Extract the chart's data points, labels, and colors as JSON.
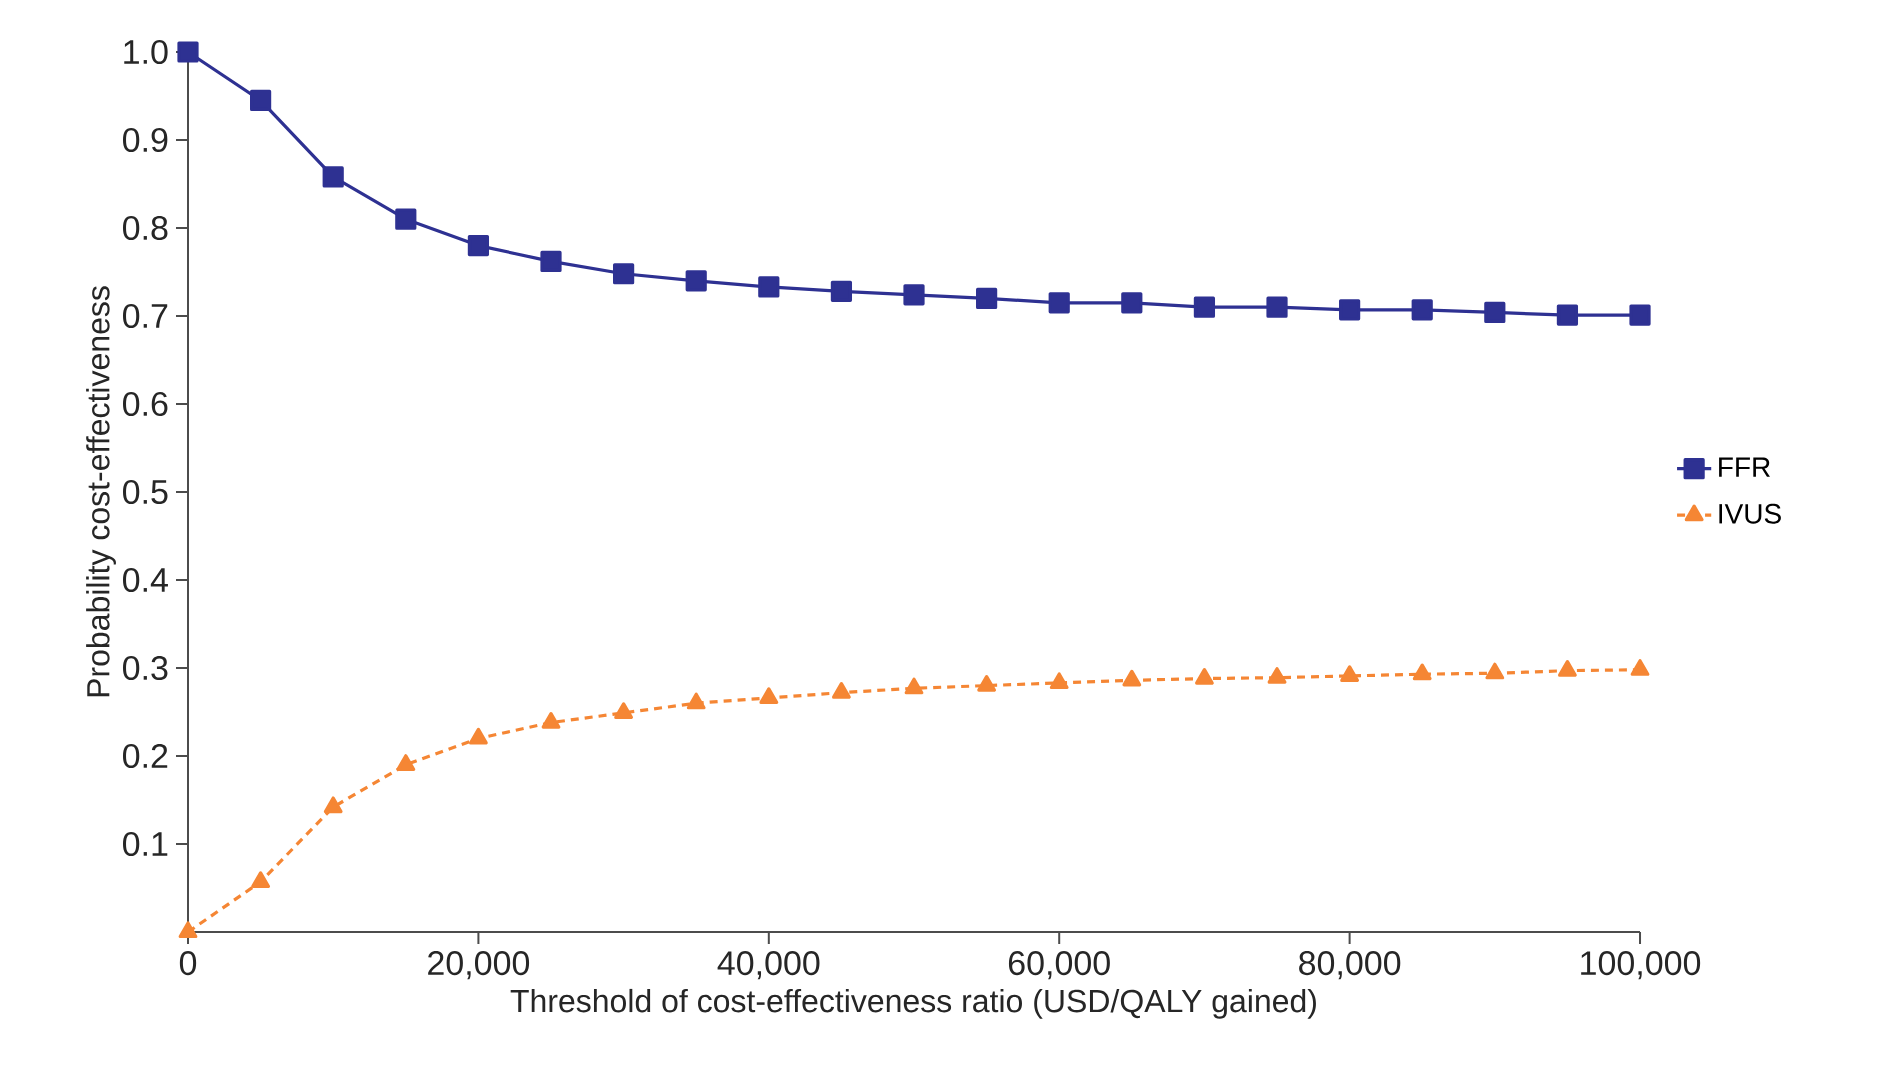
{
  "chart_data": {
    "type": "line",
    "xlabel": "Threshold of cost-effectiveness ratio (USD/QALY gained)",
    "ylabel": "Probability cost-effectiveness",
    "x": [
      0,
      5000,
      10000,
      15000,
      20000,
      25000,
      30000,
      35000,
      40000,
      45000,
      50000,
      55000,
      60000,
      65000,
      70000,
      75000,
      80000,
      85000,
      90000,
      95000,
      100000
    ],
    "series": [
      {
        "name": "FFR",
        "color": "#2e3192",
        "marker": "square",
        "line_style": "solid",
        "values": [
          1.0,
          0.945,
          0.858,
          0.81,
          0.78,
          0.762,
          0.748,
          0.74,
          0.733,
          0.728,
          0.724,
          0.72,
          0.715,
          0.715,
          0.71,
          0.71,
          0.707,
          0.707,
          0.704,
          0.701,
          0.701
        ]
      },
      {
        "name": "IVUS",
        "color": "#f58634",
        "marker": "triangle",
        "line_style": "dashed",
        "values": [
          0,
          0.057,
          0.142,
          0.19,
          0.22,
          0.238,
          0.249,
          0.26,
          0.266,
          0.272,
          0.277,
          0.28,
          0.283,
          0.286,
          0.288,
          0.289,
          0.291,
          0.293,
          0.294,
          0.297,
          0.298
        ]
      }
    ],
    "xlim": [
      0,
      100000
    ],
    "xticks": [
      {
        "value": 0,
        "label": "0"
      },
      {
        "value": 20000,
        "label": "20,000"
      },
      {
        "value": 40000,
        "label": "40,000"
      },
      {
        "value": 60000,
        "label": "60,000"
      },
      {
        "value": 80000,
        "label": "80,000"
      },
      {
        "value": 100000,
        "label": "100,000"
      }
    ],
    "ylim": [
      0,
      1.0
    ],
    "yticks": [
      0.1,
      0.2,
      0.3,
      0.4,
      0.5,
      0.6,
      0.7,
      0.8,
      0.9,
      {
        "value": 1.0,
        "label": "1.0"
      }
    ],
    "grid": false,
    "legend": "right"
  }
}
